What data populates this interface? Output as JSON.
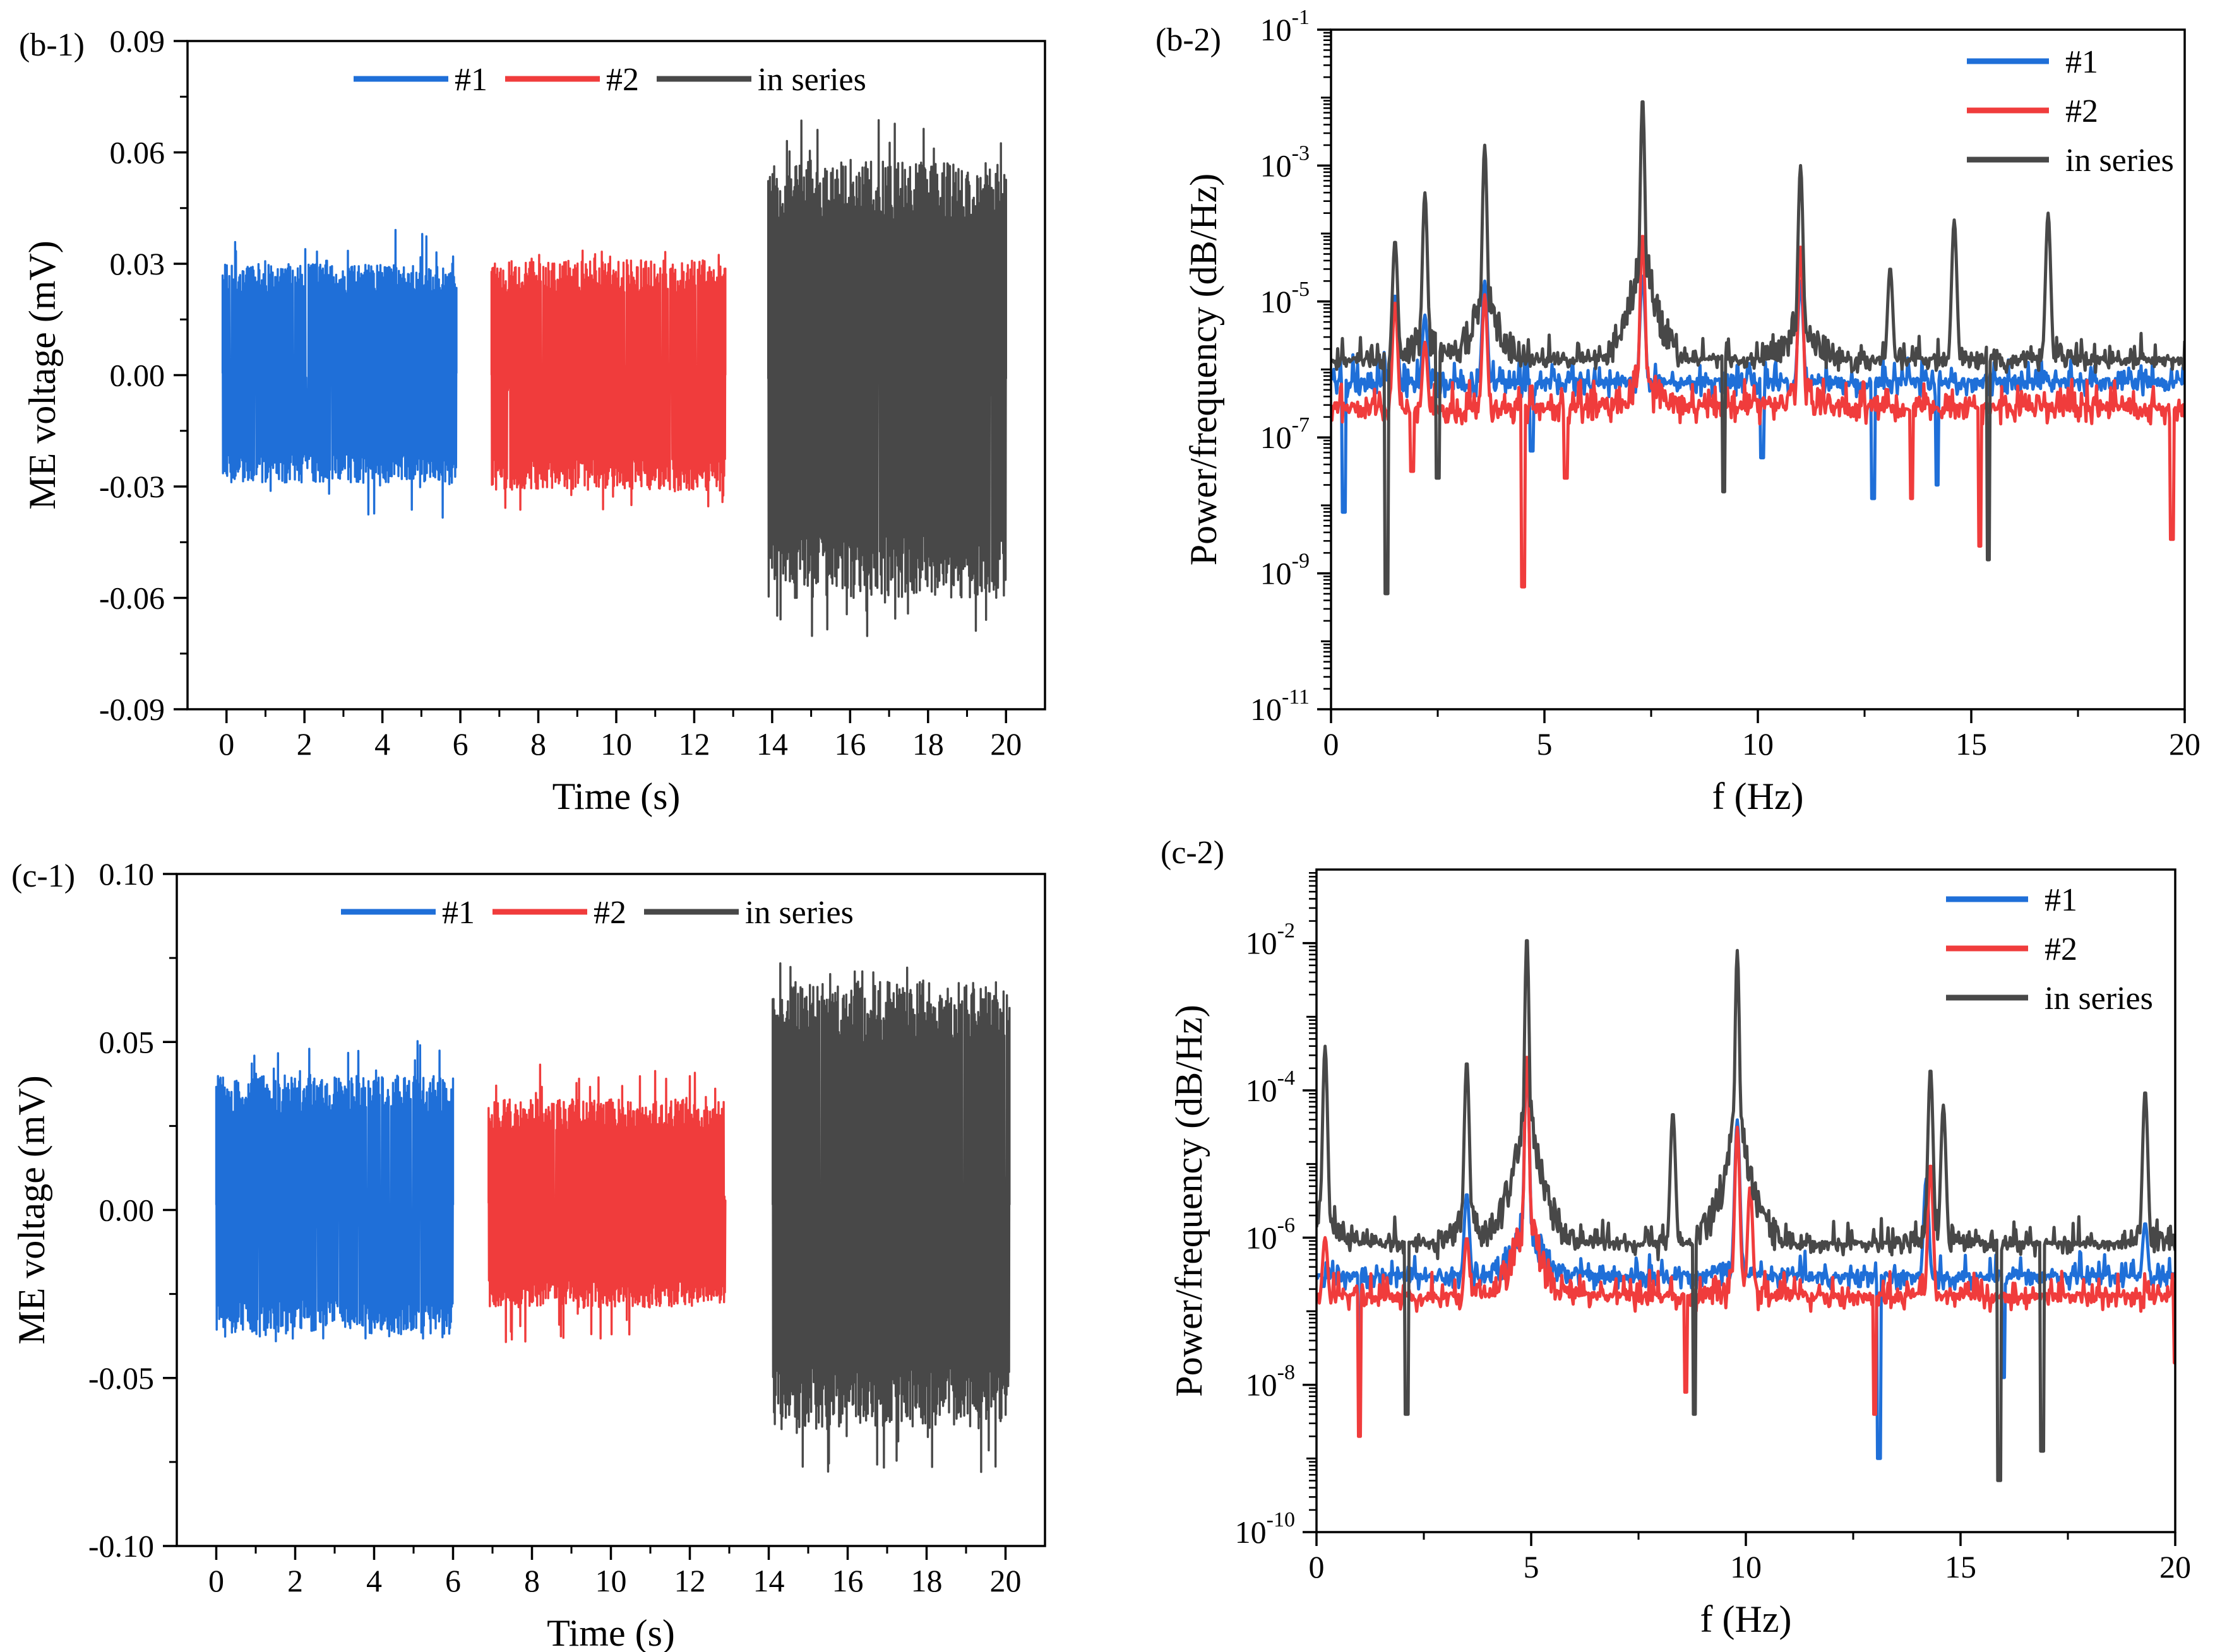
{
  "chart_data": [
    {
      "id": "b-1",
      "type": "line",
      "panel_label": "(b-1)",
      "xlabel": "Time (s)",
      "ylabel": "ME voltage (mV)",
      "xlim": [
        -1,
        21
      ],
      "ylim": [
        -0.09,
        0.09
      ],
      "xticks": [
        0,
        2,
        4,
        6,
        8,
        10,
        12,
        14,
        16,
        18,
        20
      ],
      "xtick_labels": [
        "0",
        "2",
        "4",
        "6",
        "8",
        "10",
        "12",
        "14",
        "16",
        "18",
        "20"
      ],
      "yticks": [
        -0.09,
        -0.06,
        -0.03,
        0.0,
        0.03,
        0.06,
        0.09
      ],
      "ytick_labels": [
        "-0.09",
        "-0.06",
        "-0.03",
        "0.00",
        "0.03",
        "0.06",
        "0.09"
      ],
      "legend_position": "top-center",
      "series": [
        {
          "name": "#1",
          "color": "#1f6fd8",
          "t_range": [
            -0.1,
            5.9
          ],
          "typical": [
            -0.029,
            0.03
          ],
          "peaks": [
            -0.039,
            0.041
          ]
        },
        {
          "name": "#2",
          "color": "#f03c3c",
          "t_range": [
            6.8,
            12.8
          ],
          "typical": [
            -0.031,
            0.031
          ],
          "peaks": [
            -0.037,
            0.034
          ]
        },
        {
          "name": "in series",
          "color": "#484848",
          "t_range": [
            13.9,
            20.0
          ],
          "typical": [
            -0.06,
            0.058
          ],
          "peaks": [
            -0.074,
            0.07
          ]
        }
      ]
    },
    {
      "id": "b-2",
      "type": "line",
      "panel_label": "(b-2)",
      "xlabel": "f (Hz)",
      "ylabel": "Power/frequency (dB/Hz)",
      "yscale": "log",
      "xlim": [
        0,
        20
      ],
      "ylim_log10": [
        -11,
        -1
      ],
      "xticks": [
        0,
        5,
        10,
        15,
        20
      ],
      "xtick_labels": [
        "0",
        "5",
        "10",
        "15",
        "20"
      ],
      "yticks_log10": [
        -11,
        -9,
        -7,
        -5,
        -3,
        -1
      ],
      "ytick_base": "10",
      "ytick_exponents": [
        "-11",
        "-9",
        "-7",
        "-5",
        "-3",
        "-1"
      ],
      "legend_position": "top-right",
      "series": [
        {
          "name": "#1",
          "color": "#1f6fd8",
          "baseline_log10": -6.4,
          "noise": 0.55,
          "peaks": [
            [
              1.5,
              -4.9
            ],
            [
              2.2,
              -5.2
            ],
            [
              3.6,
              -4.7
            ],
            [
              7.3,
              -4.6
            ],
            [
              11.0,
              -4.7
            ]
          ],
          "dips": [
            [
              0.3,
              -8.1
            ],
            [
              4.7,
              -7.2
            ],
            [
              10.1,
              -7.3
            ],
            [
              12.7,
              -7.9
            ],
            [
              14.2,
              -7.7
            ]
          ]
        },
        {
          "name": "#2",
          "color": "#f03c3c",
          "baseline_log10": -6.8,
          "noise": 0.6,
          "peaks": [
            [
              1.5,
              -5.0
            ],
            [
              2.2,
              -5.6
            ],
            [
              3.6,
              -4.9
            ],
            [
              7.3,
              -4.0
            ],
            [
              11.0,
              -4.2
            ]
          ],
          "dips": [
            [
              1.9,
              -7.5
            ],
            [
              4.5,
              -9.2
            ],
            [
              5.5,
              -7.6
            ],
            [
              13.6,
              -7.9
            ],
            [
              15.2,
              -8.6
            ],
            [
              19.7,
              -8.5
            ]
          ]
        },
        {
          "name": "in series",
          "color": "#484848",
          "baseline_log10": -6.1,
          "noise": 0.55,
          "peaks": [
            [
              1.5,
              -4.1
            ],
            [
              2.2,
              -3.4
            ],
            [
              3.6,
              -2.7
            ],
            [
              7.3,
              -2.0
            ],
            [
              11.0,
              -3.0
            ],
            [
              13.1,
              -4.5
            ],
            [
              14.6,
              -3.8
            ],
            [
              16.8,
              -3.7
            ]
          ],
          "dips": [
            [
              1.3,
              -9.3
            ],
            [
              2.5,
              -7.6
            ],
            [
              9.2,
              -7.8
            ],
            [
              15.4,
              -8.8
            ]
          ]
        }
      ]
    },
    {
      "id": "c-1",
      "type": "line",
      "panel_label": "(c-1)",
      "xlabel": "Time (s)",
      "ylabel": "ME voltage (mV)",
      "xlim": [
        -1,
        21
      ],
      "ylim": [
        -0.1,
        0.1
      ],
      "xticks": [
        0,
        2,
        4,
        6,
        8,
        10,
        12,
        14,
        16,
        18,
        20
      ],
      "xtick_labels": [
        "0",
        "2",
        "4",
        "6",
        "8",
        "10",
        "12",
        "14",
        "16",
        "18",
        "20"
      ],
      "yticks": [
        -0.1,
        -0.05,
        0.0,
        0.05,
        0.1
      ],
      "ytick_labels": [
        "-0.10",
        "-0.05",
        "0.00",
        "0.05",
        "0.10"
      ],
      "legend_position": "top-center",
      "series": [
        {
          "name": "#1",
          "color": "#1f6fd8",
          "t_range": [
            0.0,
            6.0
          ],
          "typical": [
            -0.037,
            0.04
          ],
          "peaks": [
            -0.04,
            0.051
          ]
        },
        {
          "name": "#2",
          "color": "#f03c3c",
          "t_range": [
            6.9,
            12.9
          ],
          "typical": [
            -0.029,
            0.033
          ],
          "peaks": [
            -0.04,
            0.047
          ]
        },
        {
          "name": "in series",
          "color": "#484848",
          "t_range": [
            14.1,
            20.1
          ],
          "typical": [
            -0.065,
            0.068
          ],
          "peaks": [
            -0.078,
            0.076
          ]
        }
      ]
    },
    {
      "id": "c-2",
      "type": "line",
      "panel_label": "(c-2)",
      "xlabel": "f (Hz)",
      "ylabel": "Power/frequency (dB/Hz)",
      "yscale": "log",
      "xlim": [
        0,
        20
      ],
      "ylim_log10": [
        -10,
        -1
      ],
      "xticks": [
        0,
        5,
        10,
        15,
        20
      ],
      "xtick_labels": [
        "0",
        "5",
        "10",
        "15",
        "20"
      ],
      "yticks_log10": [
        -10,
        -8,
        -6,
        -4,
        -2
      ],
      "ytick_base": "10",
      "ytick_exponents": [
        "-10",
        "-8",
        "-6",
        "-4",
        "-2"
      ],
      "legend_position": "top-right",
      "series": [
        {
          "name": "#1",
          "color": "#1f6fd8",
          "baseline_log10": -6.7,
          "noise": 0.45,
          "peaks": [
            [
              3.5,
              -5.4
            ],
            [
              4.9,
              -3.6
            ],
            [
              9.8,
              -4.4
            ],
            [
              14.2,
              -5.2
            ],
            [
              19.3,
              -5.8
            ]
          ],
          "dips": [
            [
              1.0,
              -7.8
            ],
            [
              13.1,
              -9.0
            ],
            [
              16.0,
              -7.9
            ]
          ]
        },
        {
          "name": "#2",
          "color": "#f03c3c",
          "baseline_log10": -7.0,
          "noise": 0.5,
          "peaks": [
            [
              0.2,
              -6.0
            ],
            [
              3.5,
              -6.0
            ],
            [
              4.9,
              -3.5
            ],
            [
              9.8,
              -4.5
            ],
            [
              10.1,
              -5.3
            ],
            [
              14.3,
              -5.0
            ]
          ],
          "dips": [
            [
              1.0,
              -8.7
            ],
            [
              8.6,
              -8.1
            ],
            [
              13.0,
              -8.4
            ],
            [
              20.0,
              -7.7
            ]
          ]
        },
        {
          "name": "in series",
          "color": "#484848",
          "baseline_log10": -6.3,
          "noise": 0.5,
          "peaks": [
            [
              0.2,
              -3.4
            ],
            [
              3.5,
              -3.6
            ],
            [
              4.9,
              -1.9
            ],
            [
              8.3,
              -4.3
            ],
            [
              9.8,
              -2.1
            ],
            [
              14.3,
              -3.7
            ],
            [
              14.6,
              -4.2
            ],
            [
              19.3,
              -4.0
            ]
          ],
          "dips": [
            [
              2.1,
              -8.4
            ],
            [
              8.8,
              -8.4
            ],
            [
              15.9,
              -9.3
            ],
            [
              16.9,
              -8.9
            ]
          ]
        }
      ]
    }
  ]
}
